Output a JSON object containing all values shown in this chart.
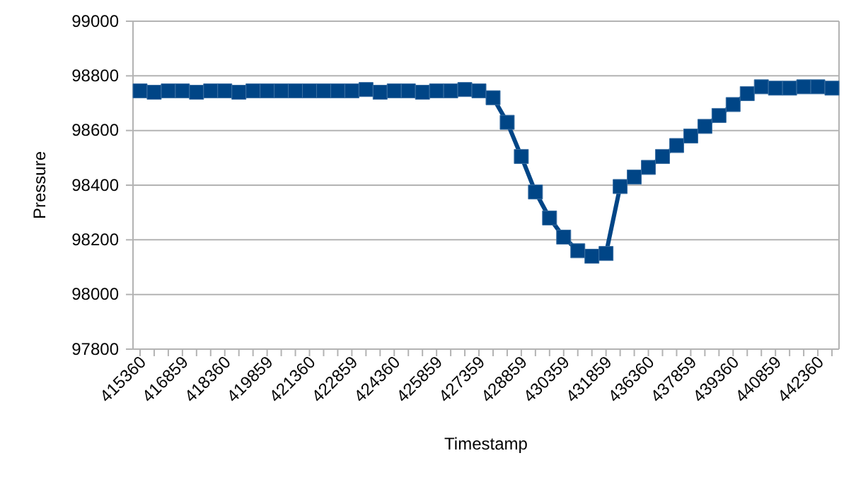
{
  "chart_data": {
    "type": "line",
    "xlabel": "Timestamp",
    "ylabel": "Pressure",
    "categories": [
      "415360",
      null,
      null,
      "416859",
      null,
      null,
      "418360",
      null,
      null,
      "419859",
      null,
      null,
      "421360",
      null,
      null,
      "422859",
      null,
      null,
      "424360",
      null,
      null,
      "425859",
      null,
      null,
      "427359",
      null,
      null,
      "428859",
      null,
      null,
      "430359",
      null,
      null,
      "431859",
      null,
      null,
      "436360",
      null,
      null,
      "437859",
      null,
      null,
      "439360",
      null,
      null,
      "440859",
      null,
      null,
      "442360",
      null
    ],
    "series": [
      {
        "color": "#004586",
        "values": [
          98745,
          98740,
          98745,
          98745,
          98740,
          98745,
          98745,
          98740,
          98745,
          98745,
          98745,
          98745,
          98745,
          98745,
          98745,
          98745,
          98750,
          98740,
          98745,
          98745,
          98740,
          98745,
          98745,
          98750,
          98745,
          98720,
          98630,
          98505,
          98375,
          98280,
          98210,
          98160,
          98140,
          98150,
          98395,
          98430,
          98465,
          98505,
          98545,
          98580,
          98615,
          98655,
          98695,
          98735,
          98760,
          98755,
          98755,
          98760,
          98760,
          98755
        ]
      }
    ],
    "ylim": [
      97800,
      99000
    ],
    "yticks": [
      97800,
      98000,
      98200,
      98400,
      98600,
      98800,
      99000
    ],
    "grid": "y",
    "marker": "square",
    "line_style": "solid"
  }
}
